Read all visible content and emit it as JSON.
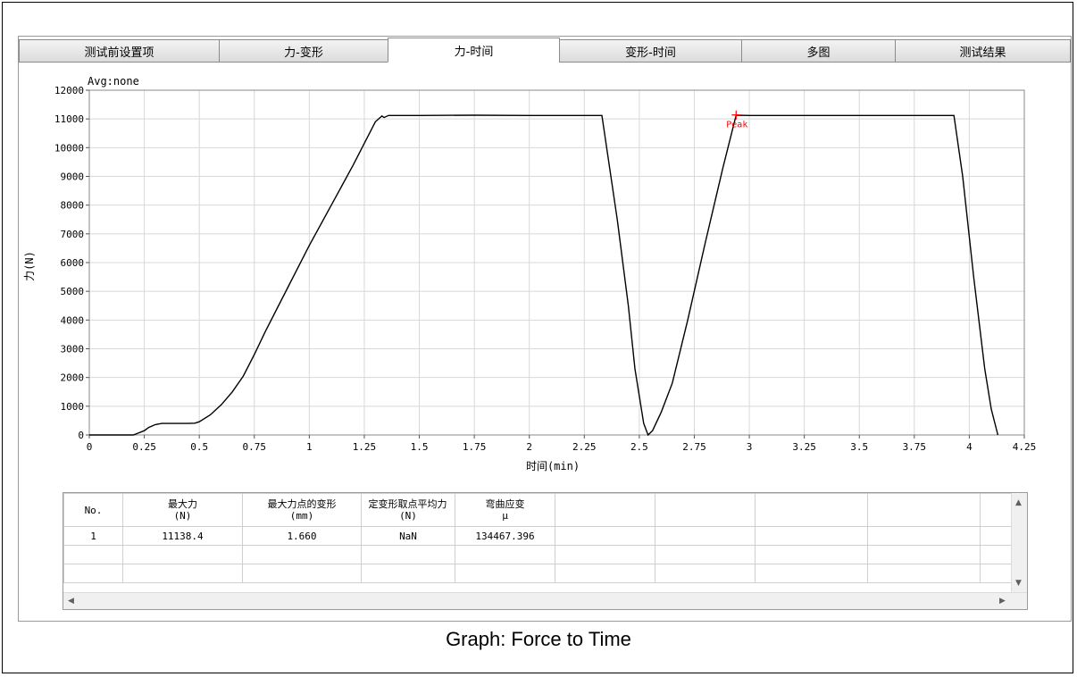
{
  "tabs": [
    {
      "label": "测试前设置项",
      "active": false
    },
    {
      "label": "力-变形",
      "active": false
    },
    {
      "label": "力-时间",
      "active": true
    },
    {
      "label": "变形-时间",
      "active": false
    },
    {
      "label": "多图",
      "active": false
    },
    {
      "label": "测试结果",
      "active": false
    }
  ],
  "chart_data": {
    "type": "line",
    "annotation_top": "Avg:none",
    "xlabel": "时间(min)",
    "ylabel": "力(N)",
    "xlim": [
      0,
      4.25
    ],
    "ylim": [
      0,
      12000
    ],
    "x_ticks": [
      "0",
      "0.25",
      "0.5",
      "0.75",
      "1",
      "1.25",
      "1.5",
      "1.75",
      "2",
      "2.25",
      "2.5",
      "2.75",
      "3",
      "3.25",
      "3.5",
      "3.75",
      "4",
      "4.25"
    ],
    "y_ticks": [
      "0",
      "1000",
      "2000",
      "3000",
      "4000",
      "5000",
      "6000",
      "7000",
      "8000",
      "9000",
      "10000",
      "11000",
      "12000"
    ],
    "grid": true,
    "line_color": "#000000",
    "series": [
      {
        "x": [
          0,
          0.2,
          0.22,
          0.25,
          0.27,
          0.3,
          0.33,
          0.36,
          0.4,
          0.45,
          0.48,
          0.5,
          0.55,
          0.6,
          0.65,
          0.7,
          0.75,
          0.8,
          0.9,
          1.0,
          1.1,
          1.2,
          1.3,
          1.33,
          1.34,
          1.36,
          1.5,
          1.75,
          2.0,
          2.25,
          2.33,
          2.4,
          2.45,
          2.48,
          2.52,
          2.54,
          2.56,
          2.6,
          2.65,
          2.72,
          2.8,
          2.88,
          2.94,
          3.0,
          3.25,
          3.5,
          3.75,
          3.93,
          3.97,
          4.02,
          4.07,
          4.1,
          4.13
        ],
        "y": [
          0,
          0,
          60,
          150,
          260,
          360,
          400,
          400,
          400,
          400,
          410,
          460,
          700,
          1050,
          1500,
          2050,
          2800,
          3600,
          5100,
          6600,
          8000,
          9400,
          10900,
          11100,
          11050,
          11120,
          11120,
          11130,
          11120,
          11120,
          11120,
          7500,
          4500,
          2300,
          400,
          0,
          150,
          800,
          1800,
          4000,
          6700,
          9300,
          11130,
          11120,
          11120,
          11120,
          11120,
          11120,
          9000,
          5500,
          2300,
          900,
          0
        ]
      }
    ],
    "peak": {
      "x": 2.94,
      "y": 11138.4,
      "label": "Peak",
      "color": "#ff0000"
    }
  },
  "results_table": {
    "headers": [
      {
        "line1": "No.",
        "line2": ""
      },
      {
        "line1": "最大力",
        "line2": "(N)"
      },
      {
        "line1": "最大力点的变形",
        "line2": "(mm)"
      },
      {
        "line1": "定变形取点平均力",
        "line2": "(N)"
      },
      {
        "line1": "弯曲应变",
        "line2": "μ"
      }
    ],
    "rows": [
      [
        "1",
        "11138.4",
        "1.660",
        "NaN",
        "134467.396"
      ]
    ]
  },
  "caption": "Graph: Force to Time"
}
